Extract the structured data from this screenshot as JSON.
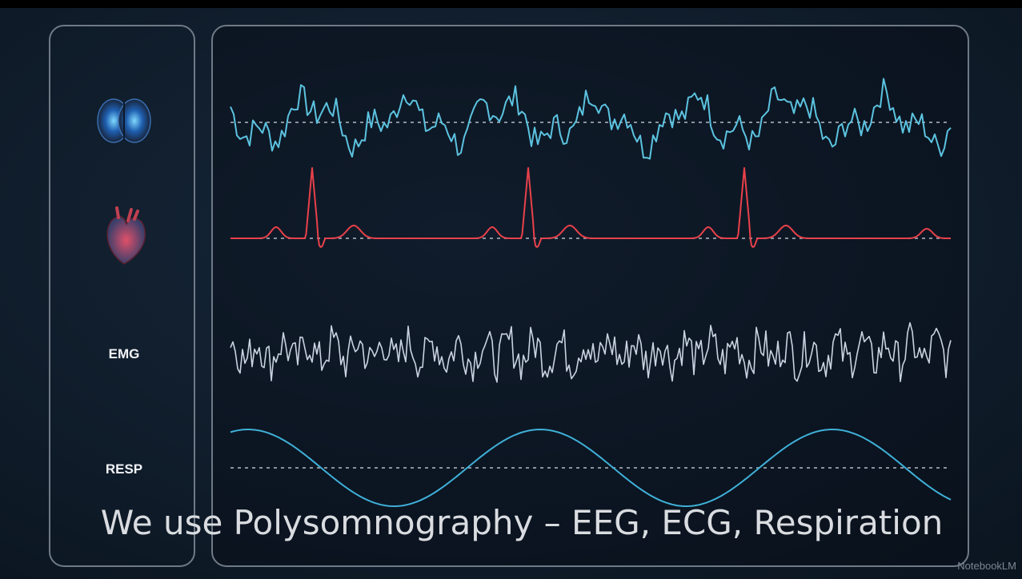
{
  "sidebar": {
    "labels": [
      "EMG",
      "RESP"
    ]
  },
  "caption": "We use Polysomnography – EEG, ECG, Respiration",
  "watermark": "NotebookLM"
}
